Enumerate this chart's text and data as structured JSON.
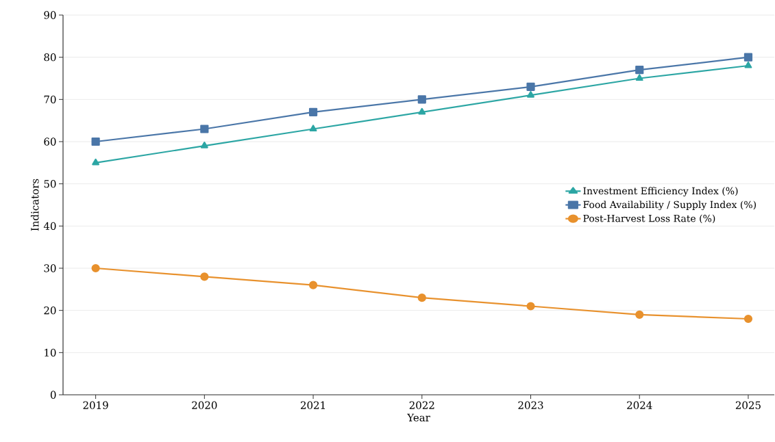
{
  "chart_data": {
    "type": "line",
    "xlabel": "Year",
    "ylabel": "Indicators",
    "categories": [
      "2019",
      "2020",
      "2021",
      "2022",
      "2023",
      "2024",
      "2025"
    ],
    "series": [
      {
        "name": "Investment Efficiency Index (%)",
        "color": "#2ca6a4",
        "marker": "triangle",
        "values": [
          55,
          59,
          63,
          67,
          71,
          75,
          78
        ]
      },
      {
        "name": "Food Availability / Supply Index (%)",
        "color": "#4a76a8",
        "marker": "square",
        "values": [
          60,
          63,
          67,
          70,
          73,
          77,
          80
        ]
      },
      {
        "name": "Post-Harvest Loss Rate (%)",
        "color": "#e8912d",
        "marker": "circle",
        "values": [
          30,
          28,
          26,
          23,
          21,
          19,
          18
        ]
      }
    ],
    "ylim": [
      0,
      90
    ],
    "yticks": [
      0,
      10,
      20,
      30,
      40,
      50,
      60,
      70,
      80,
      90
    ],
    "grid": "y",
    "legend": "right",
    "line_style": "solid"
  }
}
